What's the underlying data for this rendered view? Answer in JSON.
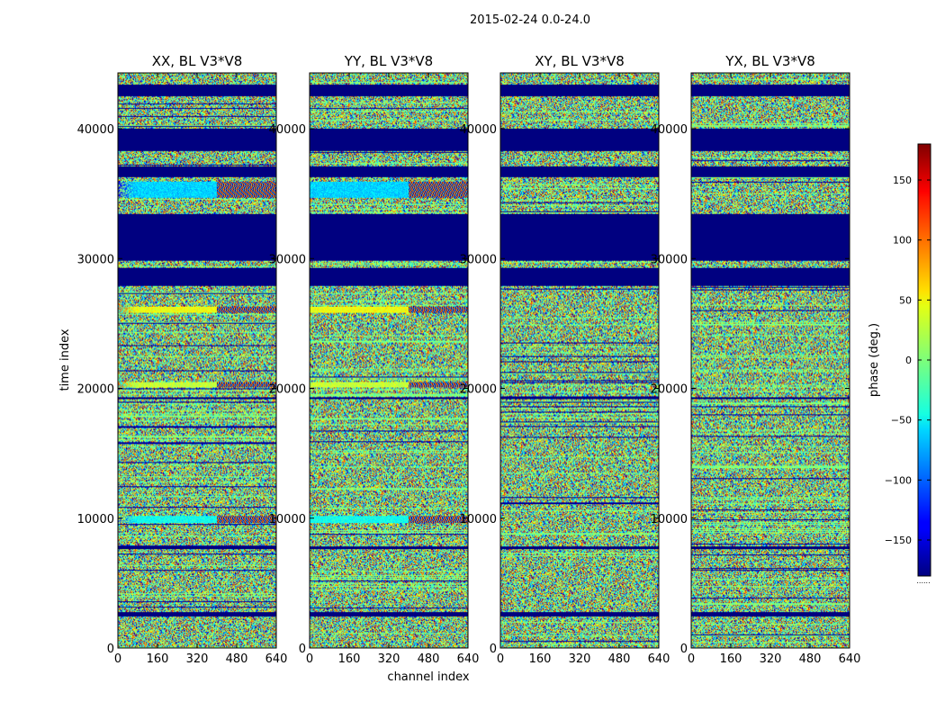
{
  "figure": {
    "suptitle": "2015-02-24 0.0-24.0"
  },
  "chart_data": {
    "type": "heatmap",
    "suptitle": "2015-02-24 0.0-24.0",
    "xlabel": "channel index",
    "ylabel": "time index",
    "xlim": [
      0,
      640
    ],
    "ylim": [
      0,
      44300
    ],
    "xticks": [
      "0",
      "160",
      "320",
      "480",
      "640"
    ],
    "yticks": [
      "0",
      "10000",
      "20000",
      "30000",
      "40000"
    ],
    "panels": [
      {
        "title": "XX, BL V3*V8",
        "polarization": "XX"
      },
      {
        "title": "YY, BL V3*V8",
        "polarization": "YY"
      },
      {
        "title": "XY, BL V3*V8",
        "polarization": "XY"
      },
      {
        "title": "YX, BL V3*V8",
        "polarization": "YX"
      }
    ],
    "colorbar": {
      "label": "phase (deg.)",
      "range": [
        -180,
        180
      ],
      "ticks": [
        "150",
        "100",
        "50",
        "0",
        "−50",
        "−100",
        "−150"
      ],
      "colormap": "jet"
    },
    "blank_bands_time": [
      [
        42500,
        43400
      ],
      [
        38300,
        40000
      ],
      [
        36300,
        37100
      ],
      [
        29800,
        33400
      ],
      [
        27900,
        29300
      ],
      [
        19200,
        19300
      ],
      [
        7600,
        7800
      ],
      [
        2400,
        2800
      ]
    ],
    "coherent_bands_time": [
      {
        "range": [
          34700,
          35900
        ],
        "channel_extent": 400,
        "phase_deg": -60,
        "panels": [
          "XX",
          "YY"
        ]
      },
      {
        "range": [
          25800,
          26300
        ],
        "channel_extent": 400,
        "phase_deg": 40,
        "panels": [
          "XX",
          "YY"
        ]
      },
      {
        "range": [
          20100,
          20500
        ],
        "channel_extent": 400,
        "phase_deg": 25,
        "panels": [
          "XX",
          "YY"
        ]
      },
      {
        "range": [
          9600,
          10200
        ],
        "channel_extent": 400,
        "phase_deg": -40,
        "panels": [
          "XX",
          "YY"
        ]
      }
    ]
  }
}
